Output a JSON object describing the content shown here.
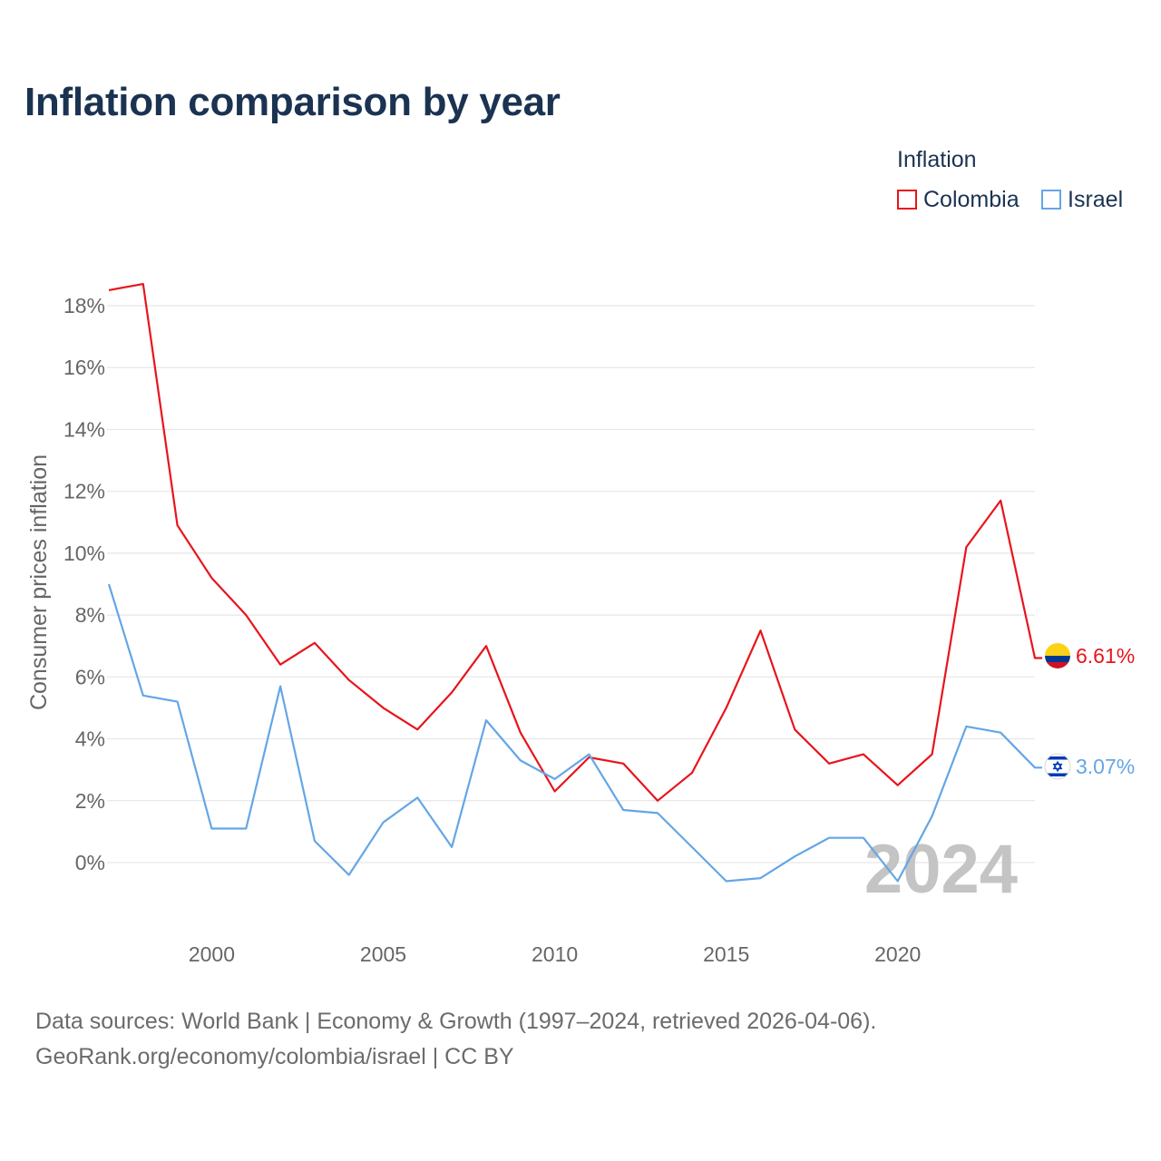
{
  "title": "Inflation comparison by year",
  "legend": {
    "title": "Inflation",
    "items": [
      {
        "label": "Colombia",
        "color": "#e8141c"
      },
      {
        "label": "Israel",
        "color": "#64a6e6"
      }
    ]
  },
  "source": {
    "line1": "Data sources: World Bank | Economy & Growth (1997–2024, retrieved 2026-04-06).",
    "line2": "GeoRank.org/economy/colombia/israel | CC BY"
  },
  "chart_data": {
    "type": "line",
    "title": "Inflation comparison by year",
    "xlabel": "",
    "ylabel": "Consumer prices inflation",
    "xlim": [
      1997,
      2024
    ],
    "ylim": [
      -2,
      19
    ],
    "x_ticks": [
      2000,
      2005,
      2010,
      2015,
      2020
    ],
    "y_ticks": [
      0,
      2,
      4,
      6,
      8,
      10,
      12,
      14,
      16,
      18
    ],
    "y_tick_labels": [
      "0%",
      "2%",
      "4%",
      "6%",
      "8%",
      "10%",
      "12%",
      "14%",
      "16%",
      "18%"
    ],
    "grid": true,
    "legend_position": "top-right",
    "watermark_year": "2024",
    "x": [
      1997,
      1998,
      1999,
      2000,
      2001,
      2002,
      2003,
      2004,
      2005,
      2006,
      2007,
      2008,
      2009,
      2010,
      2011,
      2012,
      2013,
      2014,
      2015,
      2016,
      2017,
      2018,
      2019,
      2020,
      2021,
      2022,
      2023,
      2024
    ],
    "series": [
      {
        "name": "Colombia",
        "color": "#e8141c",
        "end_label": "6.61%",
        "flag": "colombia-flag-icon",
        "values": [
          18.5,
          18.7,
          10.9,
          9.2,
          8.0,
          6.4,
          7.1,
          5.9,
          5.0,
          4.3,
          5.5,
          7.0,
          4.2,
          2.3,
          3.4,
          3.2,
          2.0,
          2.9,
          5.0,
          7.5,
          4.3,
          3.2,
          3.5,
          2.5,
          3.5,
          10.2,
          11.7,
          6.61
        ]
      },
      {
        "name": "Israel",
        "color": "#64a6e6",
        "end_label": "3.07%",
        "flag": "israel-flag-icon",
        "values": [
          9.0,
          5.4,
          5.2,
          1.1,
          1.1,
          5.7,
          0.7,
          -0.4,
          1.3,
          2.1,
          0.5,
          4.6,
          3.3,
          2.7,
          3.5,
          1.7,
          1.6,
          0.5,
          -0.6,
          -0.5,
          0.2,
          0.8,
          0.8,
          -0.6,
          1.5,
          4.4,
          4.2,
          3.07
        ]
      }
    ]
  }
}
